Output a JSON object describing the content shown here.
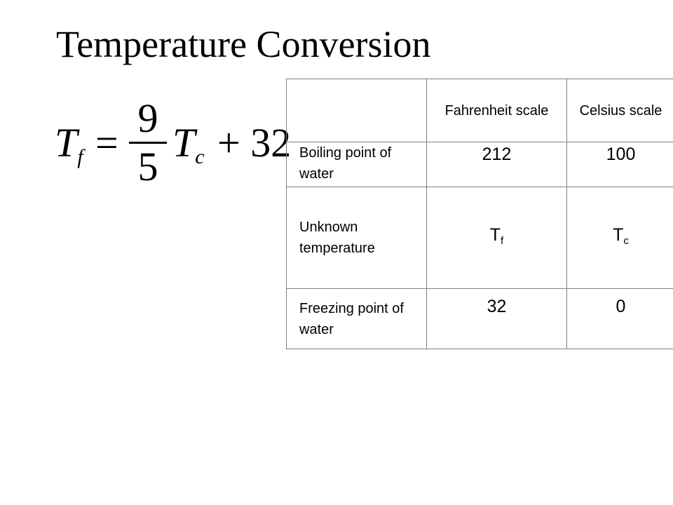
{
  "slide": {
    "title": "Temperature Conversion"
  },
  "formula": {
    "lhs_symbol": "T",
    "lhs_subscript": "f",
    "equals": "=",
    "numerator": "9",
    "denominator": "5",
    "rhs_symbol": "T",
    "rhs_subscript": "c",
    "addend": "+ 32"
  },
  "table": {
    "headers": [
      "",
      "Fahrenheit scale",
      "Celsius scale"
    ],
    "rows": [
      {
        "label": "Boiling point of water",
        "fahrenheit": "212",
        "celsius": "100"
      },
      {
        "label": "Unknown temperature",
        "fahrenheit_symbol": "T",
        "fahrenheit_subscript": "f",
        "celsius_symbol": "T",
        "celsius_subscript": "c"
      },
      {
        "label": "Freezing point of water",
        "fahrenheit": "32",
        "celsius": "0"
      }
    ]
  }
}
